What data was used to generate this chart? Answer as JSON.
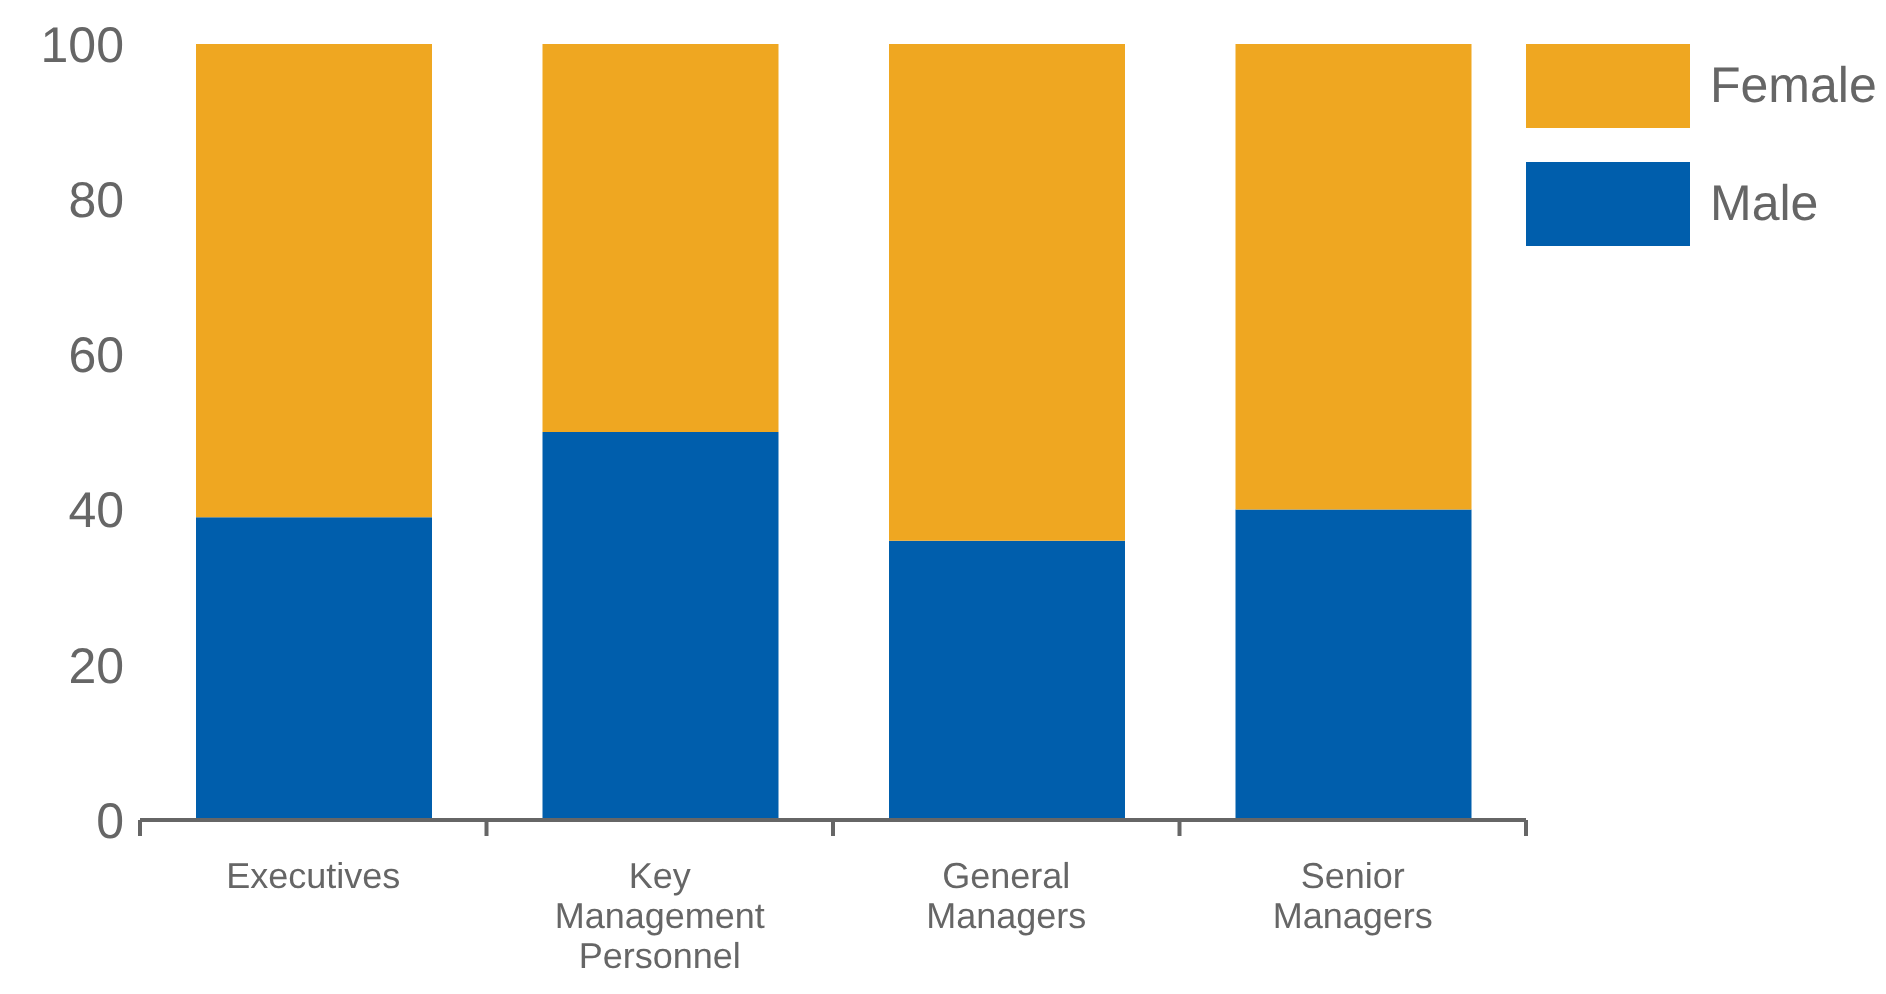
{
  "chart_data": {
    "type": "bar",
    "stacked": true,
    "categories": [
      "Executives",
      "Key Management Personnel",
      "General Managers",
      "Senior Managers"
    ],
    "series": [
      {
        "name": "Male",
        "color": "#005eac",
        "values": [
          39,
          50,
          36,
          40
        ]
      },
      {
        "name": "Female",
        "color": "#efa721",
        "values": [
          61,
          50,
          64,
          60
        ]
      }
    ],
    "ylim": [
      0,
      100
    ],
    "yticks": [
      0,
      20,
      40,
      60,
      80,
      100
    ],
    "grid": false,
    "legend": "top right"
  }
}
